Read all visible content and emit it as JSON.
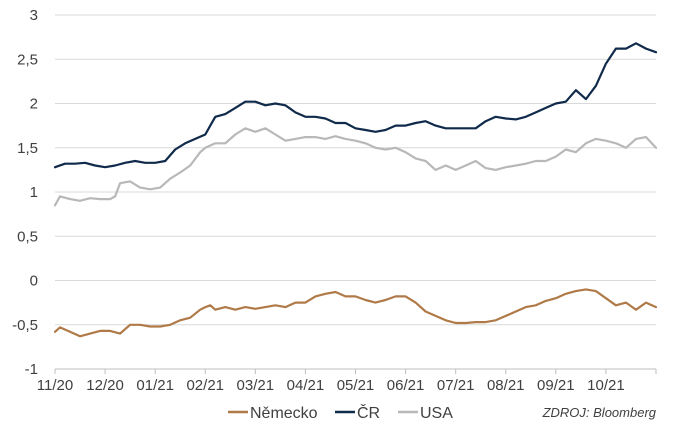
{
  "chart_data": {
    "type": "line",
    "title": "",
    "xlabel": "",
    "ylabel": "",
    "ylim": [
      -1,
      3
    ],
    "y_ticks": [
      "3",
      "2,5",
      "2",
      "1,5",
      "1",
      "0,5",
      "0",
      "-0,5",
      "-1"
    ],
    "y_tick_values": [
      3,
      2.5,
      2,
      1.5,
      1,
      0.5,
      0,
      -0.5,
      -1
    ],
    "x_ticks": [
      "11/20",
      "12/20",
      "01/21",
      "02/21",
      "03/21",
      "04/21",
      "05/21",
      "06/21",
      "07/21",
      "08/21",
      "09/21",
      "10/21"
    ],
    "x_range": [
      0,
      12
    ],
    "grid": "horizontal",
    "legend_position": "bottom",
    "series": [
      {
        "name": "Německo",
        "color": "#b07a48",
        "points": [
          [
            0.0,
            -0.58
          ],
          [
            0.1,
            -0.53
          ],
          [
            0.3,
            -0.58
          ],
          [
            0.5,
            -0.63
          ],
          [
            0.7,
            -0.6
          ],
          [
            0.9,
            -0.57
          ],
          [
            1.1,
            -0.57
          ],
          [
            1.3,
            -0.6
          ],
          [
            1.5,
            -0.5
          ],
          [
            1.7,
            -0.5
          ],
          [
            1.9,
            -0.52
          ],
          [
            2.1,
            -0.52
          ],
          [
            2.3,
            -0.5
          ],
          [
            2.5,
            -0.45
          ],
          [
            2.7,
            -0.42
          ],
          [
            2.9,
            -0.33
          ],
          [
            3.0,
            -0.3
          ],
          [
            3.1,
            -0.28
          ],
          [
            3.2,
            -0.33
          ],
          [
            3.4,
            -0.3
          ],
          [
            3.6,
            -0.33
          ],
          [
            3.8,
            -0.3
          ],
          [
            4.0,
            -0.32
          ],
          [
            4.2,
            -0.3
          ],
          [
            4.4,
            -0.28
          ],
          [
            4.6,
            -0.3
          ],
          [
            4.8,
            -0.25
          ],
          [
            5.0,
            -0.25
          ],
          [
            5.2,
            -0.18
          ],
          [
            5.4,
            -0.15
          ],
          [
            5.6,
            -0.13
          ],
          [
            5.8,
            -0.18
          ],
          [
            6.0,
            -0.18
          ],
          [
            6.2,
            -0.22
          ],
          [
            6.4,
            -0.25
          ],
          [
            6.6,
            -0.22
          ],
          [
            6.8,
            -0.18
          ],
          [
            7.0,
            -0.18
          ],
          [
            7.2,
            -0.25
          ],
          [
            7.4,
            -0.35
          ],
          [
            7.6,
            -0.4
          ],
          [
            7.8,
            -0.45
          ],
          [
            8.0,
            -0.48
          ],
          [
            8.2,
            -0.48
          ],
          [
            8.4,
            -0.47
          ],
          [
            8.6,
            -0.47
          ],
          [
            8.8,
            -0.45
          ],
          [
            9.0,
            -0.4
          ],
          [
            9.2,
            -0.35
          ],
          [
            9.4,
            -0.3
          ],
          [
            9.6,
            -0.28
          ],
          [
            9.8,
            -0.23
          ],
          [
            10.0,
            -0.2
          ],
          [
            10.2,
            -0.15
          ],
          [
            10.4,
            -0.12
          ],
          [
            10.6,
            -0.1
          ],
          [
            10.8,
            -0.12
          ],
          [
            11.0,
            -0.2
          ],
          [
            11.2,
            -0.28
          ],
          [
            11.4,
            -0.25
          ],
          [
            11.6,
            -0.33
          ],
          [
            11.8,
            -0.25
          ],
          [
            12.0,
            -0.3
          ]
        ]
      },
      {
        "name": "ČR",
        "color": "#0f2a4a",
        "points": [
          [
            0.0,
            1.28
          ],
          [
            0.2,
            1.32
          ],
          [
            0.4,
            1.32
          ],
          [
            0.6,
            1.33
          ],
          [
            0.8,
            1.3
          ],
          [
            1.0,
            1.28
          ],
          [
            1.2,
            1.3
          ],
          [
            1.4,
            1.33
          ],
          [
            1.6,
            1.35
          ],
          [
            1.8,
            1.33
          ],
          [
            2.0,
            1.33
          ],
          [
            2.2,
            1.35
          ],
          [
            2.4,
            1.48
          ],
          [
            2.6,
            1.55
          ],
          [
            2.8,
            1.6
          ],
          [
            3.0,
            1.65
          ],
          [
            3.1,
            1.75
          ],
          [
            3.2,
            1.85
          ],
          [
            3.4,
            1.88
          ],
          [
            3.6,
            1.95
          ],
          [
            3.8,
            2.02
          ],
          [
            4.0,
            2.02
          ],
          [
            4.2,
            1.98
          ],
          [
            4.4,
            2.0
          ],
          [
            4.6,
            1.98
          ],
          [
            4.8,
            1.9
          ],
          [
            5.0,
            1.85
          ],
          [
            5.2,
            1.85
          ],
          [
            5.4,
            1.83
          ],
          [
            5.6,
            1.78
          ],
          [
            5.8,
            1.78
          ],
          [
            6.0,
            1.72
          ],
          [
            6.2,
            1.7
          ],
          [
            6.4,
            1.68
          ],
          [
            6.6,
            1.7
          ],
          [
            6.8,
            1.75
          ],
          [
            7.0,
            1.75
          ],
          [
            7.2,
            1.78
          ],
          [
            7.4,
            1.8
          ],
          [
            7.6,
            1.75
          ],
          [
            7.8,
            1.72
          ],
          [
            8.0,
            1.72
          ],
          [
            8.2,
            1.72
          ],
          [
            8.4,
            1.72
          ],
          [
            8.6,
            1.8
          ],
          [
            8.8,
            1.85
          ],
          [
            9.0,
            1.83
          ],
          [
            9.2,
            1.82
          ],
          [
            9.4,
            1.85
          ],
          [
            9.6,
            1.9
          ],
          [
            9.8,
            1.95
          ],
          [
            10.0,
            2.0
          ],
          [
            10.2,
            2.02
          ],
          [
            10.4,
            2.15
          ],
          [
            10.6,
            2.05
          ],
          [
            10.8,
            2.2
          ],
          [
            11.0,
            2.45
          ],
          [
            11.2,
            2.62
          ],
          [
            11.4,
            2.62
          ],
          [
            11.6,
            2.68
          ],
          [
            11.8,
            2.62
          ],
          [
            12.0,
            2.58
          ]
        ]
      },
      {
        "name": "USA",
        "color": "#b8b8b8",
        "points": [
          [
            0.0,
            0.85
          ],
          [
            0.1,
            0.95
          ],
          [
            0.3,
            0.92
          ],
          [
            0.5,
            0.9
          ],
          [
            0.7,
            0.93
          ],
          [
            0.9,
            0.92
          ],
          [
            1.1,
            0.92
          ],
          [
            1.2,
            0.95
          ],
          [
            1.3,
            1.1
          ],
          [
            1.5,
            1.12
          ],
          [
            1.7,
            1.05
          ],
          [
            1.9,
            1.03
          ],
          [
            2.1,
            1.05
          ],
          [
            2.3,
            1.15
          ],
          [
            2.5,
            1.22
          ],
          [
            2.7,
            1.3
          ],
          [
            2.9,
            1.45
          ],
          [
            3.0,
            1.5
          ],
          [
            3.2,
            1.55
          ],
          [
            3.4,
            1.55
          ],
          [
            3.6,
            1.65
          ],
          [
            3.8,
            1.72
          ],
          [
            4.0,
            1.68
          ],
          [
            4.2,
            1.72
          ],
          [
            4.4,
            1.65
          ],
          [
            4.6,
            1.58
          ],
          [
            4.8,
            1.6
          ],
          [
            5.0,
            1.62
          ],
          [
            5.2,
            1.62
          ],
          [
            5.4,
            1.6
          ],
          [
            5.6,
            1.63
          ],
          [
            5.8,
            1.6
          ],
          [
            6.0,
            1.58
          ],
          [
            6.2,
            1.55
          ],
          [
            6.4,
            1.5
          ],
          [
            6.6,
            1.48
          ],
          [
            6.8,
            1.5
          ],
          [
            7.0,
            1.45
          ],
          [
            7.2,
            1.38
          ],
          [
            7.4,
            1.35
          ],
          [
            7.6,
            1.25
          ],
          [
            7.8,
            1.3
          ],
          [
            8.0,
            1.25
          ],
          [
            8.2,
            1.3
          ],
          [
            8.4,
            1.35
          ],
          [
            8.6,
            1.27
          ],
          [
            8.8,
            1.25
          ],
          [
            9.0,
            1.28
          ],
          [
            9.2,
            1.3
          ],
          [
            9.4,
            1.32
          ],
          [
            9.6,
            1.35
          ],
          [
            9.8,
            1.35
          ],
          [
            10.0,
            1.4
          ],
          [
            10.2,
            1.48
          ],
          [
            10.4,
            1.45
          ],
          [
            10.6,
            1.55
          ],
          [
            10.8,
            1.6
          ],
          [
            11.0,
            1.58
          ],
          [
            11.2,
            1.55
          ],
          [
            11.4,
            1.5
          ],
          [
            11.6,
            1.6
          ],
          [
            11.8,
            1.62
          ],
          [
            12.0,
            1.5
          ]
        ]
      }
    ],
    "source": "ZDROJ: Bloomberg"
  }
}
